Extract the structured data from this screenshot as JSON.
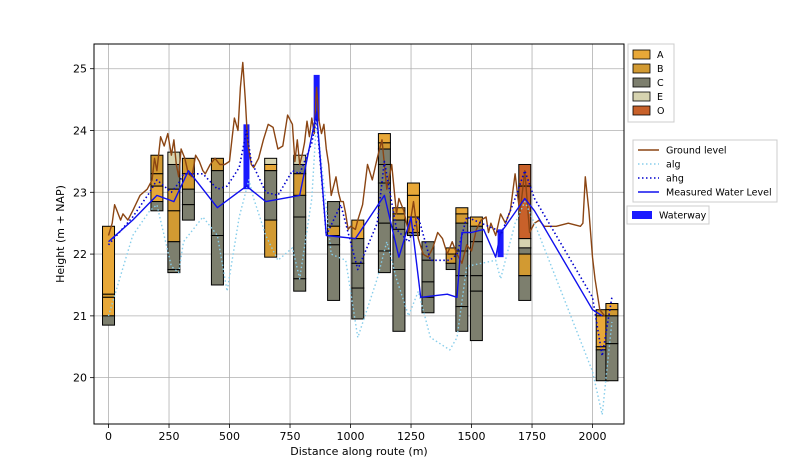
{
  "chart_data": {
    "type": "line",
    "xlabel": "Distance along route (m)",
    "ylabel": "Height (m + NAP)",
    "xlim": [
      -60,
      2130
    ],
    "ylim": [
      19.25,
      25.4
    ],
    "xticks": [
      0,
      250,
      500,
      750,
      1000,
      1250,
      1500,
      1750,
      2000
    ],
    "yticks": [
      20,
      21,
      22,
      23,
      24,
      25
    ],
    "grid": true,
    "soil_legend": [
      {
        "label": "A",
        "color": "#e8a838"
      },
      {
        "label": "B",
        "color": "#d29a32"
      },
      {
        "label": "C",
        "color": "#7d7f6e"
      },
      {
        "label": "E",
        "color": "#d6d3b0"
      },
      {
        "label": "O",
        "color": "#c8612a"
      }
    ],
    "line_legend": [
      {
        "label": "Ground level",
        "color": "#8b4513",
        "style": "solid"
      },
      {
        "label": "alg",
        "color": "#87ceeb",
        "style": "dotted"
      },
      {
        "label": "ahg",
        "color": "#0000cd",
        "style": "dotted"
      },
      {
        "label": "Measured Water Level",
        "color": "#1010ee",
        "style": "solid"
      }
    ],
    "waterway_legend": {
      "label": "Waterway",
      "color": "#1a1aff"
    },
    "series": [
      {
        "name": "Ground level",
        "color": "#8b4513",
        "x": [
          0,
          15,
          25,
          35,
          50,
          60,
          80,
          100,
          130,
          160,
          180,
          190,
          200,
          215,
          230,
          245,
          260,
          270,
          280,
          290,
          300,
          315,
          330,
          345,
          360,
          375,
          390,
          400,
          420,
          440,
          460,
          480,
          500,
          510,
          520,
          535,
          545,
          555,
          565,
          575,
          590,
          600,
          620,
          640,
          660,
          680,
          700,
          720,
          740,
          760,
          770,
          780,
          790,
          800,
          810,
          820,
          830,
          840,
          850,
          860,
          870,
          880,
          890,
          900,
          910,
          920,
          940,
          950,
          960,
          970,
          980,
          990,
          1000,
          1020,
          1030,
          1050,
          1070,
          1090,
          1110,
          1130,
          1150,
          1170,
          1190,
          1200,
          1220,
          1240,
          1260,
          1280,
          1300,
          1320,
          1340,
          1360,
          1380,
          1400,
          1420,
          1440,
          1460,
          1480,
          1500,
          1520,
          1540,
          1560,
          1570,
          1580,
          1600,
          1620,
          1640,
          1660,
          1680,
          1700,
          1720,
          1740,
          1760,
          1780,
          1800,
          1850,
          1900,
          1950,
          1960,
          1970,
          1985,
          2000,
          2010,
          2030,
          2050
        ],
        "y": [
          22.3,
          22.5,
          22.8,
          22.7,
          22.55,
          22.65,
          22.55,
          22.7,
          22.95,
          23.05,
          23.2,
          23.55,
          23.35,
          23.9,
          23.75,
          23.95,
          23.6,
          23.85,
          23.45,
          23.25,
          23.7,
          23.55,
          23.3,
          23.25,
          23.6,
          23.5,
          23.35,
          23.3,
          23.45,
          23.55,
          23.45,
          23.45,
          23.5,
          23.85,
          24.2,
          24.0,
          24.7,
          25.1,
          24.5,
          23.8,
          23.45,
          23.4,
          23.55,
          23.85,
          24.1,
          24.05,
          23.7,
          23.75,
          24.25,
          24.1,
          23.5,
          23.85,
          23.45,
          23.6,
          23.8,
          24.15,
          23.9,
          24.2,
          23.95,
          24.7,
          24.15,
          23.95,
          24.1,
          23.7,
          23.45,
          22.95,
          23.25,
          23.0,
          22.85,
          22.85,
          22.65,
          22.4,
          22.45,
          22.4,
          22.55,
          22.8,
          23.45,
          23.2,
          23.55,
          23.85,
          23.05,
          23.45,
          22.65,
          22.9,
          22.7,
          22.35,
          22.85,
          22.25,
          22.0,
          21.95,
          22.1,
          22.35,
          22.25,
          22.0,
          22.2,
          22.0,
          21.85,
          22.15,
          22.05,
          22.4,
          22.55,
          22.6,
          22.35,
          22.5,
          22.3,
          22.65,
          22.5,
          22.7,
          23.3,
          22.65,
          23.35,
          22.35,
          22.5,
          22.55,
          22.45,
          22.45,
          22.5,
          22.45,
          22.5,
          23.25,
          22.7,
          21.95,
          21.6,
          21.1,
          21.0
        ]
      },
      {
        "name": "alg",
        "color": "#87ceeb",
        "x": [
          0,
          100,
          170,
          200,
          260,
          290,
          310,
          390,
          450,
          490,
          540,
          580,
          600,
          650,
          700,
          760,
          790,
          840,
          860,
          920,
          980,
          1030,
          1110,
          1150,
          1190,
          1240,
          1280,
          1330,
          1410,
          1440,
          1480,
          1600,
          1620,
          1680,
          1720,
          1760,
          2000,
          2040,
          2080
        ],
        "y": [
          21.0,
          22.3,
          22.7,
          22.8,
          21.8,
          21.7,
          22.2,
          22.6,
          22.3,
          21.4,
          22.6,
          23.2,
          22.9,
          22.3,
          21.9,
          22.1,
          21.6,
          22.9,
          24.2,
          22.0,
          21.9,
          20.65,
          21.6,
          22.2,
          21.6,
          21.0,
          21.4,
          20.65,
          20.45,
          20.65,
          21.8,
          21.9,
          21.6,
          22.5,
          22.85,
          22.5,
          20.1,
          19.4,
          20.9
        ]
      },
      {
        "name": "ahg",
        "color": "#0000cd",
        "x": [
          0,
          100,
          170,
          200,
          260,
          290,
          310,
          390,
          450,
          490,
          540,
          570,
          590,
          650,
          700,
          760,
          790,
          840,
          860,
          900,
          960,
          1030,
          1110,
          1140,
          1190,
          1240,
          1280,
          1330,
          1410,
          1440,
          1480,
          1600,
          1620,
          1680,
          1720,
          1760,
          2000,
          2040,
          2080
        ],
        "y": [
          22.15,
          22.6,
          23.0,
          23.2,
          23.0,
          23.15,
          23.3,
          23.3,
          23.05,
          23.1,
          23.4,
          24.0,
          23.5,
          23.0,
          22.95,
          23.35,
          23.3,
          23.8,
          24.2,
          22.3,
          22.8,
          21.75,
          22.5,
          23.5,
          22.4,
          22.2,
          22.6,
          21.9,
          21.9,
          22.0,
          22.6,
          22.4,
          22.3,
          22.9,
          23.35,
          22.9,
          21.3,
          20.35,
          21.3
        ]
      },
      {
        "name": "Measured Water Level",
        "color": "#1010ee",
        "x": [
          0,
          100,
          200,
          270,
          330,
          450,
          570,
          650,
          790,
          860,
          900,
          1020,
          1140,
          1200,
          1250,
          1290,
          1400,
          1440,
          1460,
          1500,
          1550,
          1600,
          1620,
          1640,
          1720,
          1760,
          2000,
          2040
        ],
        "y": [
          22.2,
          22.55,
          22.95,
          22.85,
          23.35,
          22.75,
          23.1,
          22.85,
          22.95,
          24.3,
          22.3,
          22.25,
          22.95,
          21.95,
          22.6,
          21.3,
          21.35,
          21.3,
          22.35,
          22.35,
          22.4,
          21.95,
          22.35,
          22.45,
          22.9,
          22.7,
          21.1,
          21.0
        ]
      }
    ],
    "waterways": [
      {
        "x": 570,
        "y_bottom": 23.05,
        "y_top": 24.1
      },
      {
        "x": 860,
        "y_bottom": 24.15,
        "y_top": 24.9
      },
      {
        "x": 1620,
        "y_bottom": 21.95,
        "y_top": 22.4
      }
    ],
    "boreholes": [
      {
        "x": 0,
        "layers": [
          [
            21.35,
            22.45,
            "A"
          ],
          [
            21.3,
            21.35,
            "B"
          ],
          [
            21.0,
            21.3,
            "A"
          ],
          [
            20.85,
            21.0,
            "C"
          ]
        ]
      },
      {
        "x": 200,
        "layers": [
          [
            23.3,
            23.6,
            "B"
          ],
          [
            23.1,
            23.3,
            "B"
          ],
          [
            22.85,
            23.1,
            "A"
          ],
          [
            22.7,
            22.85,
            "C"
          ]
        ]
      },
      {
        "x": 270,
        "layers": [
          [
            23.45,
            23.65,
            "E"
          ],
          [
            23.05,
            23.45,
            "C"
          ],
          [
            22.7,
            23.05,
            "B"
          ],
          [
            22.2,
            22.7,
            "B"
          ],
          [
            21.75,
            22.2,
            "C"
          ],
          [
            21.7,
            21.75,
            "C"
          ]
        ]
      },
      {
        "x": 330,
        "layers": [
          [
            23.3,
            23.55,
            "B"
          ],
          [
            23.05,
            23.3,
            "B"
          ],
          [
            22.8,
            23.05,
            "C"
          ],
          [
            22.55,
            22.8,
            "C"
          ]
        ]
      },
      {
        "x": 450,
        "layers": [
          [
            23.35,
            23.55,
            "B"
          ],
          [
            22.3,
            23.35,
            "C"
          ],
          [
            21.5,
            22.3,
            "C"
          ]
        ]
      },
      {
        "x": 670,
        "layers": [
          [
            23.45,
            23.55,
            "E"
          ],
          [
            23.35,
            23.45,
            "A"
          ],
          [
            22.55,
            23.35,
            "C"
          ],
          [
            21.95,
            22.55,
            "B"
          ]
        ]
      },
      {
        "x": 790,
        "layers": [
          [
            23.45,
            23.6,
            "E"
          ],
          [
            23.3,
            23.45,
            "C"
          ],
          [
            22.95,
            23.3,
            "B"
          ],
          [
            22.6,
            22.95,
            "C"
          ],
          [
            21.6,
            22.6,
            "C"
          ],
          [
            21.4,
            21.6,
            "C"
          ]
        ]
      },
      {
        "x": 930,
        "layers": [
          [
            22.45,
            22.85,
            "C"
          ],
          [
            22.3,
            22.45,
            "B"
          ],
          [
            22.15,
            22.3,
            "C"
          ],
          [
            21.25,
            22.15,
            "C"
          ]
        ]
      },
      {
        "x": 1030,
        "layers": [
          [
            22.25,
            22.55,
            "A"
          ],
          [
            21.85,
            22.25,
            "C"
          ],
          [
            21.45,
            21.85,
            "C"
          ],
          [
            20.95,
            21.45,
            "C"
          ]
        ]
      },
      {
        "x": 1140,
        "layers": [
          [
            23.8,
            23.95,
            "A"
          ],
          [
            23.7,
            23.8,
            "B"
          ],
          [
            23.45,
            23.7,
            "C"
          ],
          [
            23.15,
            23.45,
            "C"
          ],
          [
            22.5,
            23.15,
            "C"
          ],
          [
            22.05,
            22.5,
            "C"
          ],
          [
            21.7,
            22.05,
            "C"
          ]
        ]
      },
      {
        "x": 1200,
        "layers": [
          [
            22.65,
            22.75,
            "A"
          ],
          [
            22.55,
            22.65,
            "B"
          ],
          [
            22.4,
            22.55,
            "C"
          ],
          [
            21.75,
            22.4,
            "C"
          ],
          [
            20.75,
            21.75,
            "C"
          ]
        ]
      },
      {
        "x": 1260,
        "layers": [
          [
            22.95,
            23.15,
            "A"
          ],
          [
            22.6,
            22.95,
            "A"
          ],
          [
            22.35,
            22.6,
            "B"
          ],
          [
            22.3,
            22.35,
            "C"
          ]
        ]
      },
      {
        "x": 1320,
        "layers": [
          [
            21.9,
            22.2,
            "C"
          ],
          [
            21.55,
            21.9,
            "C"
          ],
          [
            21.3,
            21.55,
            "C"
          ],
          [
            21.05,
            21.3,
            "C"
          ]
        ]
      },
      {
        "x": 1420,
        "layers": [
          [
            22.0,
            22.1,
            "A"
          ],
          [
            21.85,
            22.0,
            "B"
          ],
          [
            21.75,
            21.85,
            "C"
          ]
        ]
      },
      {
        "x": 1460,
        "layers": [
          [
            22.65,
            22.75,
            "A"
          ],
          [
            22.5,
            22.65,
            "B"
          ],
          [
            22.05,
            22.5,
            "C"
          ],
          [
            21.65,
            22.05,
            "C"
          ],
          [
            21.15,
            21.65,
            "C"
          ],
          [
            20.75,
            21.15,
            "C"
          ]
        ]
      },
      {
        "x": 1520,
        "layers": [
          [
            22.45,
            22.6,
            "A"
          ],
          [
            22.2,
            22.45,
            "C"
          ],
          [
            21.65,
            22.2,
            "C"
          ],
          [
            21.4,
            21.65,
            "C"
          ],
          [
            20.6,
            21.4,
            "C"
          ]
        ]
      },
      {
        "x": 1720,
        "layers": [
          [
            23.1,
            23.45,
            "O"
          ],
          [
            22.25,
            23.1,
            "O"
          ],
          [
            22.1,
            22.25,
            "E"
          ],
          [
            22.0,
            22.1,
            "C"
          ],
          [
            21.65,
            22.0,
            "B"
          ],
          [
            21.25,
            21.65,
            "C"
          ]
        ]
      },
      {
        "x": 2040,
        "layers": [
          [
            21.0,
            21.1,
            "B"
          ],
          [
            20.5,
            21.0,
            "A"
          ],
          [
            20.45,
            20.5,
            "B"
          ],
          [
            19.95,
            20.45,
            "C"
          ]
        ]
      },
      {
        "x": 2080,
        "layers": [
          [
            21.1,
            21.2,
            "A"
          ],
          [
            21.0,
            21.1,
            "B"
          ],
          [
            20.55,
            21.0,
            "C"
          ],
          [
            19.95,
            20.55,
            "C"
          ]
        ]
      }
    ]
  }
}
